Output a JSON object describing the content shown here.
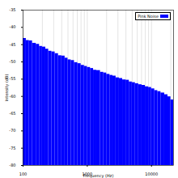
{
  "chart_data": {
    "type": "bar",
    "x_label": "Frequency (Hz)",
    "y_label": "Intensity (dB)",
    "bins": [
      100,
      112,
      125,
      140,
      160,
      180,
      200,
      225,
      250,
      280,
      315,
      355,
      400,
      450,
      500,
      560,
      630,
      710,
      800,
      900,
      1000,
      1120,
      1250,
      1400,
      1600,
      1800,
      2000,
      2250,
      2500,
      2800,
      3150,
      3550,
      4000,
      4500,
      5000,
      5600,
      6300,
      7100,
      8000,
      9000,
      10000,
      11200,
      12500,
      14000,
      16000,
      18000,
      20000,
      22050
    ],
    "series": [
      {
        "name": "Pink Noise",
        "color": "#0000ff",
        "values": [
          -43.2,
          -43.8,
          -43.9,
          -44.6,
          -44.9,
          -45.5,
          -45.7,
          -46.3,
          -46.9,
          -47.1,
          -47.6,
          -48.2,
          -48.3,
          -48.9,
          -49.4,
          -49.6,
          -50.2,
          -50.5,
          -51.0,
          -51.3,
          -51.6,
          -51.9,
          -52.4,
          -52.5,
          -53.0,
          -53.2,
          -53.6,
          -53.9,
          -54.1,
          -54.6,
          -54.8,
          -55.2,
          -55.3,
          -55.8,
          -56.0,
          -56.3,
          -56.6,
          -56.8,
          -57.2,
          -57.4,
          -57.8,
          -58.3,
          -58.6,
          -59.0,
          -59.5,
          -60.1,
          -61.0
        ]
      }
    ],
    "xlim": [
      100,
      22050
    ],
    "xticks": [
      100,
      1000,
      10000
    ],
    "ylim": [
      -80,
      -35
    ],
    "yticks": [
      -80,
      -75,
      -70,
      -65,
      -60,
      -55,
      -50,
      -45,
      -40,
      -35
    ],
    "log": "x",
    "grid": true,
    "legend": "top-right"
  }
}
